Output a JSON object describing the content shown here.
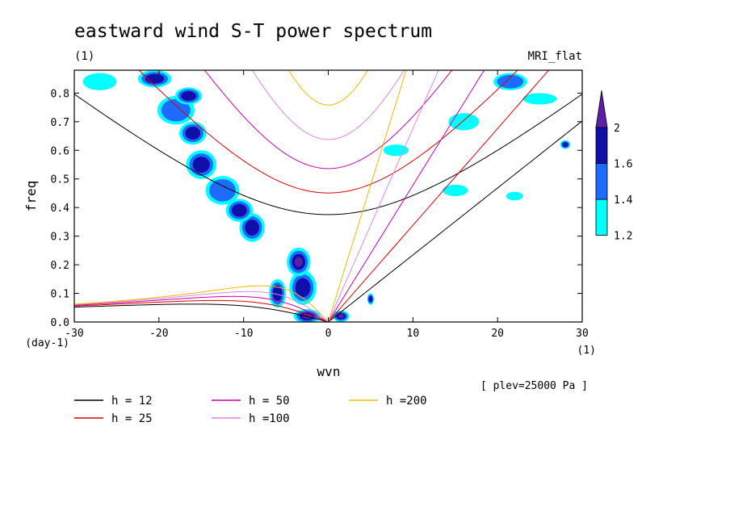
{
  "chart_data": {
    "type": "heatmap",
    "title": "eastward wind S-T power spectrum",
    "subtitle": "(1)",
    "model": "MRI_flat",
    "xlabel": "wvn",
    "ylabel": "freq",
    "x_unit": "(1)",
    "y_unit": "(day-1)",
    "level_note": "[ plev=25000 Pa ]",
    "xlim": [
      -30,
      30
    ],
    "ylim": [
      0,
      0.88
    ],
    "x_ticks": [
      "-30",
      "-20",
      "-10",
      "0",
      "10",
      "20",
      "30"
    ],
    "x_tick_values": [
      -30,
      -20,
      -10,
      0,
      10,
      20,
      30
    ],
    "y_ticks": [
      "0.0",
      "0.1",
      "0.2",
      "0.3",
      "0.4",
      "0.5",
      "0.6",
      "0.7",
      "0.8"
    ],
    "y_tick_values": [
      0.0,
      0.1,
      0.2,
      0.3,
      0.4,
      0.5,
      0.6,
      0.7,
      0.8
    ],
    "colorbar": {
      "levels": [
        "1.2",
        "1.4",
        "1.6",
        "2"
      ],
      "level_values": [
        1.2,
        1.4,
        1.6,
        2.0
      ],
      "colors": [
        "#00ffff",
        "#1e6cff",
        "#1010a8",
        "#5b1fa8"
      ]
    },
    "dispersion_curves": [
      {
        "label": "h = 12",
        "h": 12,
        "color": "#000000"
      },
      {
        "label": "h = 25",
        "h": 25,
        "color": "#dd0000"
      },
      {
        "label": "h = 50",
        "h": 50,
        "color": "#cc00aa"
      },
      {
        "label": "h =100",
        "h": 100,
        "color": "#dd88dd"
      },
      {
        "label": "h =200",
        "h": 200,
        "color": "#eebb00"
      }
    ],
    "power_blobs": [
      {
        "x": -2.5,
        "y": 0.02,
        "level": 2.0,
        "sx": 1.6,
        "sy": 0.025
      },
      {
        "x": 1.5,
        "y": 0.02,
        "level": 2.0,
        "sx": 1.0,
        "sy": 0.02
      },
      {
        "x": -3.0,
        "y": 0.12,
        "level": 1.6,
        "sx": 1.6,
        "sy": 0.06
      },
      {
        "x": -3.5,
        "y": 0.21,
        "level": 2.0,
        "sx": 1.4,
        "sy": 0.05
      },
      {
        "x": -6.0,
        "y": 0.1,
        "level": 1.6,
        "sx": 1.0,
        "sy": 0.05
      },
      {
        "x": -9.0,
        "y": 0.33,
        "level": 1.6,
        "sx": 1.5,
        "sy": 0.05
      },
      {
        "x": -10.5,
        "y": 0.39,
        "level": 1.6,
        "sx": 1.6,
        "sy": 0.04
      },
      {
        "x": -12.5,
        "y": 0.46,
        "level": 1.4,
        "sx": 2.0,
        "sy": 0.05
      },
      {
        "x": -15.0,
        "y": 0.55,
        "level": 1.6,
        "sx": 1.8,
        "sy": 0.05
      },
      {
        "x": -16.0,
        "y": 0.66,
        "level": 1.6,
        "sx": 1.6,
        "sy": 0.04
      },
      {
        "x": -18.0,
        "y": 0.74,
        "level": 1.4,
        "sx": 2.2,
        "sy": 0.05
      },
      {
        "x": -16.5,
        "y": 0.79,
        "level": 1.6,
        "sx": 1.6,
        "sy": 0.03
      },
      {
        "x": -20.5,
        "y": 0.85,
        "level": 1.6,
        "sx": 2.0,
        "sy": 0.03
      },
      {
        "x": -27.0,
        "y": 0.84,
        "level": 1.2,
        "sx": 2.0,
        "sy": 0.03
      },
      {
        "x": 21.5,
        "y": 0.84,
        "level": 1.4,
        "sx": 2.0,
        "sy": 0.03
      },
      {
        "x": 28.0,
        "y": 0.62,
        "level": 1.6,
        "sx": 0.6,
        "sy": 0.015
      },
      {
        "x": 5.0,
        "y": 0.08,
        "level": 1.6,
        "sx": 0.4,
        "sy": 0.02
      },
      {
        "x": 16.0,
        "y": 0.7,
        "level": 1.2,
        "sx": 1.8,
        "sy": 0.03
      },
      {
        "x": 15.0,
        "y": 0.46,
        "level": 1.2,
        "sx": 1.5,
        "sy": 0.02
      },
      {
        "x": 22.0,
        "y": 0.44,
        "level": 1.2,
        "sx": 1.0,
        "sy": 0.015
      },
      {
        "x": 8.0,
        "y": 0.6,
        "level": 1.2,
        "sx": 1.5,
        "sy": 0.02
      },
      {
        "x": 25.0,
        "y": 0.78,
        "level": 1.2,
        "sx": 2.0,
        "sy": 0.02
      }
    ]
  }
}
